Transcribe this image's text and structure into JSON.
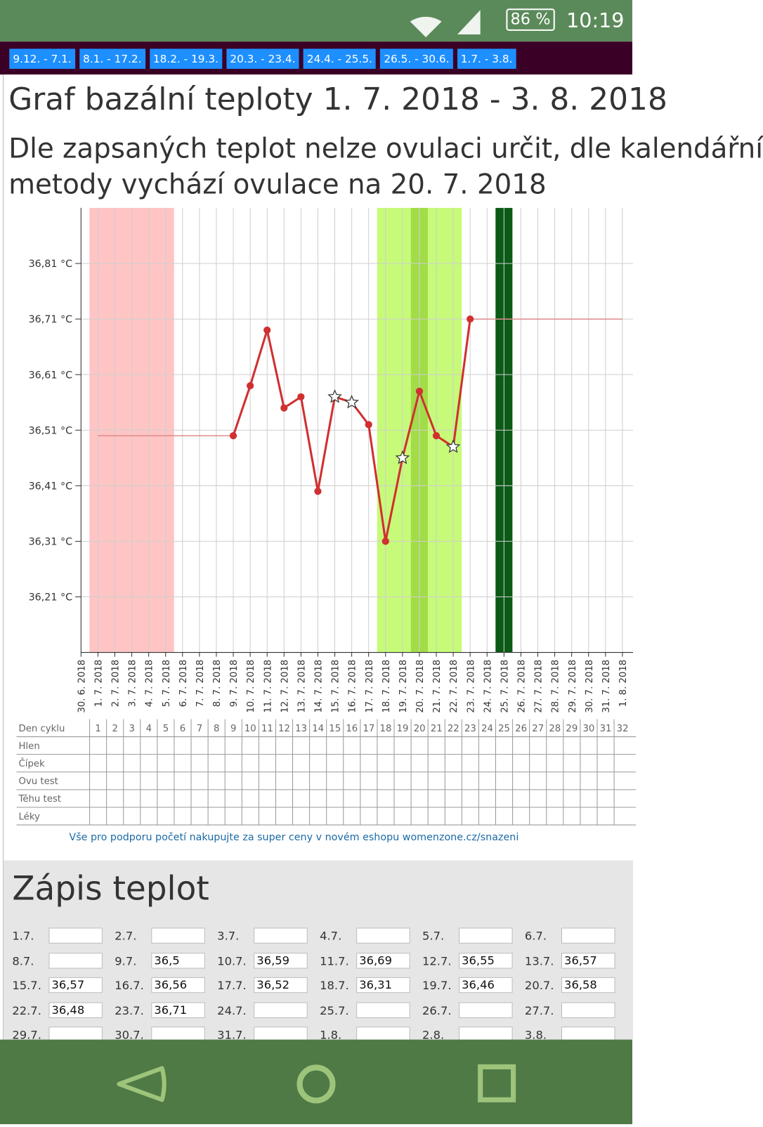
{
  "status_bar": {
    "battery": "86 %",
    "time": "10:19"
  },
  "tabs": [
    "9.12. - 7.1.",
    "8.1. - 17.2.",
    "18.2. - 19.3.",
    "20.3. - 23.4.",
    "24.4. - 25.5.",
    "26.5. - 30.6.",
    "1.7. - 3.8."
  ],
  "title": "Graf bazální teploty 1. 7. 2018 - 3. 8. 2018",
  "subtitle": [
    "Dle zapsaných teplot nelze ovulaci určit, dle kalendářní",
    "metody vychází ovulace na 20. 7. 2018"
  ],
  "chart_data": {
    "type": "line",
    "categories": [
      "30. 6. 2018",
      "1. 7. 2018",
      "2. 7. 2018",
      "3. 7. 2018",
      "4. 7. 2018",
      "5. 7. 2018",
      "6. 7. 2018",
      "7. 7. 2018",
      "8. 7. 2018",
      "9. 7. 2018",
      "10. 7. 2018",
      "11. 7. 2018",
      "12. 7. 2018",
      "13. 7. 2018",
      "14. 7. 2018",
      "15. 7. 2018",
      "16. 7. 2018",
      "17. 7. 2018",
      "18. 7. 2018",
      "19. 7. 2018",
      "20. 7. 2018",
      "21. 7. 2018",
      "22. 7. 2018",
      "23. 7. 2018",
      "24. 7. 2018",
      "25. 7. 2018",
      "26. 7. 2018",
      "27. 7. 2018",
      "28. 7. 2018",
      "29. 7. 2018",
      "30. 7. 2018",
      "31. 7. 2018",
      "1. 8. 2018"
    ],
    "series": [
      {
        "color": "#d03030",
        "values": [
          null,
          null,
          null,
          null,
          null,
          null,
          null,
          null,
          null,
          36.5,
          36.59,
          36.69,
          36.55,
          36.57,
          36.4,
          36.57,
          36.56,
          36.52,
          36.31,
          36.46,
          36.58,
          36.5,
          36.48,
          36.71,
          null,
          null,
          null,
          null,
          null,
          null,
          null,
          null,
          null
        ],
        "markers": [
          null,
          null,
          null,
          null,
          null,
          null,
          null,
          null,
          null,
          "circle",
          "circle",
          "circle",
          "circle",
          "circle",
          "circle",
          "star",
          "star",
          "circle",
          "circle",
          "star",
          "circle",
          "circle",
          "star",
          "circle",
          null,
          null,
          null,
          null,
          null,
          null,
          null,
          null,
          null
        ]
      },
      {
        "color": "#e08a8a",
        "values": [
          null,
          36.5,
          36.5,
          36.5,
          36.5,
          36.5,
          36.5,
          36.5,
          36.5,
          36.5,
          null,
          null,
          null,
          null,
          null,
          null,
          null,
          null,
          null,
          null,
          null,
          null,
          null,
          36.71,
          36.71,
          36.71,
          36.71,
          36.71,
          36.71,
          36.71,
          36.71,
          36.71,
          36.71
        ]
      }
    ],
    "bands": [
      {
        "start": 1,
        "end": 5,
        "color": "#ffc4c4"
      },
      {
        "start": 18,
        "end": 22,
        "color": "#c6fa78"
      },
      {
        "start": 20,
        "end": 20,
        "color": "#a2dc48"
      },
      {
        "start": 25,
        "end": 25,
        "color": "#0b5a16"
      }
    ],
    "ylim": [
      36.11,
      36.91
    ],
    "yticks": [
      {
        "value": 36.21,
        "label": "36,21 °C"
      },
      {
        "value": 36.31,
        "label": "36,31 °C"
      },
      {
        "value": 36.41,
        "label": "36,41 °C"
      },
      {
        "value": 36.51,
        "label": "36,51 °C"
      },
      {
        "value": 36.61,
        "label": "36,61 °C"
      },
      {
        "value": 36.71,
        "label": "36,71 °C"
      },
      {
        "value": 36.81,
        "label": "36,81 °C"
      }
    ],
    "grid": true
  },
  "cycle_table": {
    "rows": [
      "Den cyklu",
      "Hlen",
      "Čípek",
      "Ovu test",
      "Těhu test",
      "Léky"
    ],
    "days": [
      1,
      2,
      3,
      4,
      5,
      6,
      7,
      8,
      9,
      10,
      11,
      12,
      13,
      14,
      15,
      16,
      17,
      18,
      19,
      20,
      21,
      22,
      23,
      24,
      25,
      26,
      27,
      28,
      29,
      30,
      31,
      32
    ]
  },
  "promo": "Vše pro podporu početí nakupujte za super ceny v novém eshopu womenzone.cz/snazeni",
  "entry": {
    "title": "Zápis teplot",
    "rows": [
      [
        {
          "date": "1.7.",
          "value": null
        },
        {
          "date": "2.7.",
          "value": null
        },
        {
          "date": "3.7.",
          "value": null
        },
        {
          "date": "4.7.",
          "value": null
        },
        {
          "date": "5.7.",
          "value": null
        },
        {
          "date": "6.7.",
          "value": null
        }
      ],
      [
        {
          "date": "8.7.",
          "value": null
        },
        {
          "date": "9.7.",
          "value": "36,5"
        },
        {
          "date": "10.7.",
          "value": "36,59"
        },
        {
          "date": "11.7.",
          "value": "36,69"
        },
        {
          "date": "12.7.",
          "value": "36,55"
        },
        {
          "date": "13.7.",
          "value": "36,57"
        }
      ],
      [
        {
          "date": "15.7.",
          "value": "36,57"
        },
        {
          "date": "16.7.",
          "value": "36,56"
        },
        {
          "date": "17.7.",
          "value": "36,52"
        },
        {
          "date": "18.7.",
          "value": "36,31"
        },
        {
          "date": "19.7.",
          "value": "36,46"
        },
        {
          "date": "20.7.",
          "value": "36,58"
        }
      ],
      [
        {
          "date": "22.7.",
          "value": "36,48"
        },
        {
          "date": "23.7.",
          "value": "36,71"
        },
        {
          "date": "24.7.",
          "value": null
        },
        {
          "date": "25.7.",
          "value": null
        },
        {
          "date": "26.7.",
          "value": null
        },
        {
          "date": "27.7.",
          "value": null
        }
      ],
      [
        {
          "date": "29.7.",
          "value": null
        },
        {
          "date": "30.7.",
          "value": null
        },
        {
          "date": "31.7.",
          "value": null
        },
        {
          "date": "1.8.",
          "value": null
        },
        {
          "date": "2.8.",
          "value": null
        },
        {
          "date": "3.8.",
          "value": null
        }
      ]
    ]
  }
}
